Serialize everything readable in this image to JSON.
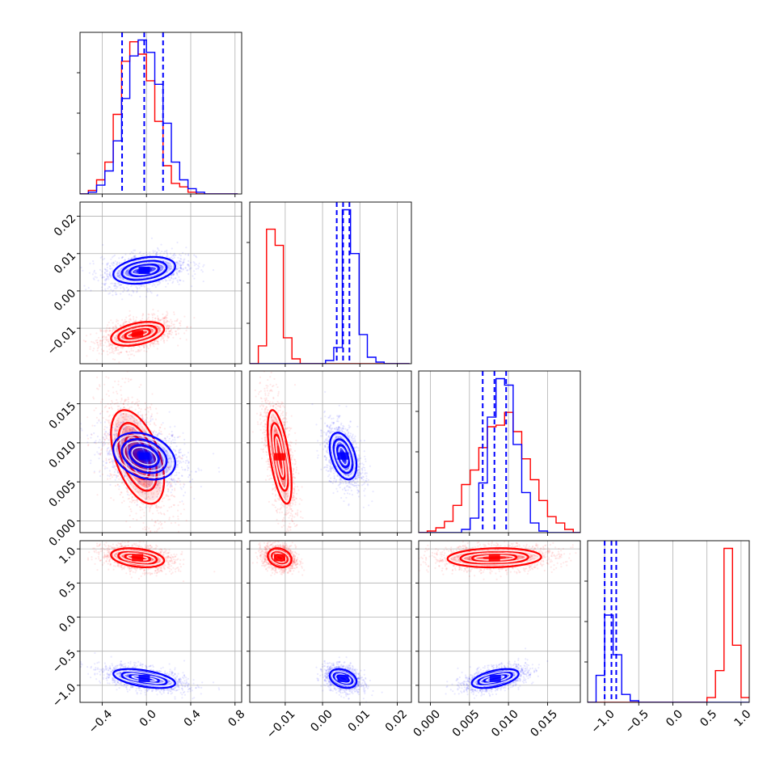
{
  "chart_data": {
    "type": "corner",
    "parameters": 4,
    "colors": {
      "series_a": "#ff0000",
      "series_b": "#0000ff",
      "grid": "#b0b0b0"
    },
    "grid": true,
    "axes": {
      "p0": {
        "range": [
          -0.6,
          0.86
        ],
        "ticks": [
          -0.4,
          0.0,
          0.4,
          0.8
        ],
        "tick_labels": [
          "−0.4",
          "0.0",
          "0.4",
          "0.8"
        ]
      },
      "p1": {
        "range": [
          -0.0195,
          0.0238
        ],
        "ticks": [
          -0.01,
          0.0,
          0.01,
          0.02
        ],
        "tick_labels": [
          "−0.01",
          "0.00",
          "0.01",
          "0.02"
        ]
      },
      "p2": {
        "range": [
          -0.0015,
          0.0192
        ],
        "ticks": [
          0.0,
          0.005,
          0.01,
          0.015
        ],
        "tick_labels": [
          "0.000",
          "0.005",
          "0.010",
          "0.015"
        ]
      },
      "p3": {
        "range": [
          -1.25,
          1.12
        ],
        "ticks": [
          -1.0,
          -0.5,
          0.0,
          0.5,
          1.0
        ],
        "tick_labels": [
          "−1.0",
          "−0.5",
          "0.0",
          "0.5",
          "1.0"
        ]
      }
    },
    "series": [
      {
        "color": "red",
        "means": [
          -0.08,
          -0.0115,
          0.0082,
          0.87
        ],
        "sds": [
          0.12,
          0.0016,
          0.003,
          0.07
        ],
        "correlations": {
          "0-1": 0.4,
          "0-2": -0.5,
          "1-2": -0.6,
          "0-3": -0.3,
          "1-3": -0.2,
          "2-3": 0.1
        },
        "histograms": {
          "p0": {
            "bin_edges": [
              -0.6,
              -0.525,
              -0.45,
              -0.375,
              -0.3,
              -0.225,
              -0.15,
              -0.075,
              0.0,
              0.075,
              0.15,
              0.225,
              0.3,
              0.375,
              0.45,
              0.525,
              0.6,
              0.675,
              0.75,
              0.825
            ],
            "counts": [
              0,
              2,
              8,
              18,
              45,
              75,
              86,
              79,
              64,
              41,
              16,
              6,
              4,
              1,
              0,
              0,
              0,
              0,
              0
            ]
          },
          "p1": {
            "bin_edges": [
              -0.0195,
              -0.0172,
              -0.015,
              -0.0127,
              -0.0105,
              -0.0082,
              -0.006,
              -0.0037,
              -0.0015,
              0.0008,
              0.003,
              0.0053,
              0.0075,
              0.0098,
              0.012,
              0.0143,
              0.0165,
              0.0188,
              0.021,
              0.0233
            ],
            "counts": [
              0,
              11,
              83,
              73,
              16,
              3,
              0,
              0,
              0,
              0,
              0,
              0,
              0,
              0,
              0,
              0,
              0,
              0,
              0
            ]
          },
          "p2": {
            "bin_edges": [
              -0.0015,
              -0.0004,
              0.0007,
              0.0018,
              0.0029,
              0.004,
              0.0051,
              0.0062,
              0.0073,
              0.0084,
              0.0095,
              0.0106,
              0.0117,
              0.0128,
              0.0139,
              0.015,
              0.0161,
              0.0172,
              0.0183,
              0.0194
            ],
            "counts": [
              0,
              1,
              3,
              7,
              17,
              30,
              39,
              53,
              66,
              67,
              75,
              63,
              46,
              33,
              20,
              10,
              6,
              2,
              0
            ]
          },
          "p3": {
            "bin_edges": [
              -1.25,
              -1.125,
              -1.0,
              -0.875,
              -0.75,
              -0.625,
              -0.5,
              -0.375,
              -0.25,
              -0.125,
              0.0,
              0.125,
              0.25,
              0.375,
              0.5,
              0.625,
              0.75,
              0.875,
              1.0,
              1.125
            ],
            "counts": [
              0,
              0,
              0,
              0,
              0,
              0,
              0,
              0,
              0,
              0,
              0,
              0,
              0,
              0,
              3,
              20,
              97,
              36,
              3
            ]
          }
        }
      },
      {
        "color": "blue",
        "means": [
          -0.02,
          0.0055,
          0.0083,
          -0.9
        ],
        "sds": [
          0.14,
          0.0018,
          0.0015,
          0.07
        ],
        "correlations": {
          "0-1": 0.3,
          "0-2": -0.3,
          "1-2": -0.4,
          "0-3": -0.5,
          "1-3": -0.3,
          "2-3": 0.5
        },
        "quantiles": {
          "p0": [
            -0.22,
            -0.02,
            0.15
          ],
          "p1": [
            0.0038,
            0.0055,
            0.0072
          ],
          "p2": [
            0.0067,
            0.0082,
            0.0097
          ],
          "p3": [
            -1.0,
            -0.9,
            -0.83
          ]
        },
        "histograms": {
          "p0": {
            "bin_edges": [
              -0.6,
              -0.525,
              -0.45,
              -0.375,
              -0.3,
              -0.225,
              -0.15,
              -0.075,
              0.0,
              0.075,
              0.15,
              0.225,
              0.3,
              0.375,
              0.45,
              0.525,
              0.6,
              0.675,
              0.75,
              0.825
            ],
            "counts": [
              0,
              1,
              5,
              13,
              30,
              54,
              78,
              87,
              80,
              62,
              40,
              18,
              8,
              3,
              1,
              0,
              0,
              0,
              0
            ]
          },
          "p1": {
            "bin_edges": [
              -0.0195,
              -0.0172,
              -0.015,
              -0.0127,
              -0.0105,
              -0.0082,
              -0.006,
              -0.0037,
              -0.0015,
              0.0008,
              0.003,
              0.0053,
              0.0075,
              0.0098,
              0.012,
              0.0143,
              0.0165,
              0.0188,
              0.021,
              0.0233
            ],
            "counts": [
              0,
              0,
              0,
              0,
              0,
              0,
              0,
              0,
              0,
              2,
              10,
              95,
              68,
              18,
              4,
              1,
              0,
              0,
              0
            ]
          },
          "p2": {
            "bin_edges": [
              -0.0015,
              -0.0004,
              0.0007,
              0.0018,
              0.0029,
              0.004,
              0.0051,
              0.0062,
              0.0073,
              0.0084,
              0.0095,
              0.0106,
              0.0117,
              0.0128,
              0.0139,
              0.015,
              0.0161,
              0.0172,
              0.0183,
              0.0194
            ],
            "counts": [
              0,
              0,
              0,
              0,
              0,
              2,
              9,
              31,
              72,
              96,
              92,
              55,
              25,
              6,
              1,
              0,
              0,
              0,
              0
            ]
          },
          "p3": {
            "bin_edges": [
              -1.25,
              -1.125,
              -1.0,
              -0.875,
              -0.75,
              -0.625,
              -0.5,
              -0.375,
              -0.25,
              -0.125,
              0.0,
              0.125,
              0.25,
              0.375,
              0.5,
              0.625,
              0.75,
              0.875,
              1.0,
              1.125
            ],
            "counts": [
              0,
              17,
              55,
              30,
              5,
              1,
              0,
              0,
              0,
              0,
              0,
              0,
              0,
              0,
              0,
              0,
              0,
              0,
              0
            ]
          }
        }
      }
    ]
  }
}
